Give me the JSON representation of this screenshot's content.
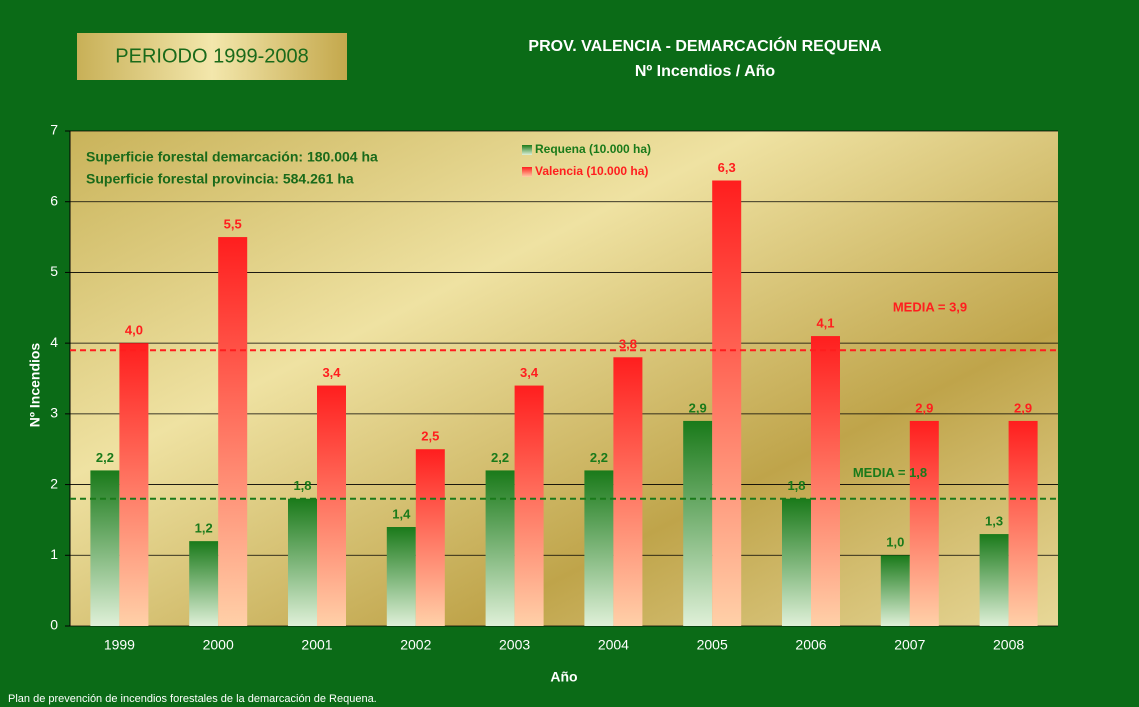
{
  "chart_data": {
    "type": "bar",
    "period": "PERIODO 1999-2008",
    "title": "PROV. VALENCIA - DEMARCACIÓN REQUENA",
    "subtitle": "Nº Incendios / Año",
    "annotations": [
      "Superficie forestal demarcación: 180.004 ha",
      "Superficie forestal provincia: 584.261 ha"
    ],
    "x_label": "Año",
    "y_label": "Nº Incendios",
    "footer": "Plan de prevención de incendios forestales de la demarcación de Requena.",
    "categories": [
      "1999",
      "2000",
      "2001",
      "2002",
      "2003",
      "2004",
      "2005",
      "2006",
      "2007",
      "2008"
    ],
    "series": [
      {
        "name": "Requena (10.000 ha)",
        "color": "#1a7a1a",
        "values": [
          2.2,
          1.2,
          1.8,
          1.4,
          2.2,
          2.2,
          2.9,
          1.8,
          1.0,
          1.3
        ],
        "value_labels": [
          "2,2",
          "1,2",
          "1,8",
          "1,4",
          "2,2",
          "2,2",
          "2,9",
          "1,8",
          "1,0",
          "1,3"
        ]
      },
      {
        "name": "Valencia (10.000 ha)",
        "color": "#ff1e1e",
        "values": [
          4.0,
          5.5,
          3.4,
          2.5,
          3.4,
          3.8,
          6.3,
          4.1,
          2.9,
          2.9
        ],
        "value_labels": [
          "4,0",
          "5,5",
          "3,4",
          "2,5",
          "3,4",
          "3,8",
          "6,3",
          "4,1",
          "2,9",
          "2,9"
        ]
      }
    ],
    "reference_lines": [
      {
        "value": 3.9,
        "label": "MEDIA = 3,9",
        "color": "#ff1e1e"
      },
      {
        "value": 1.8,
        "label": "MEDIA = 1,8",
        "color": "#1a7a1a"
      }
    ],
    "ylim": [
      0,
      7
    ],
    "yticks": [
      0,
      1,
      2,
      3,
      4,
      5,
      6,
      7
    ],
    "grid": true
  }
}
